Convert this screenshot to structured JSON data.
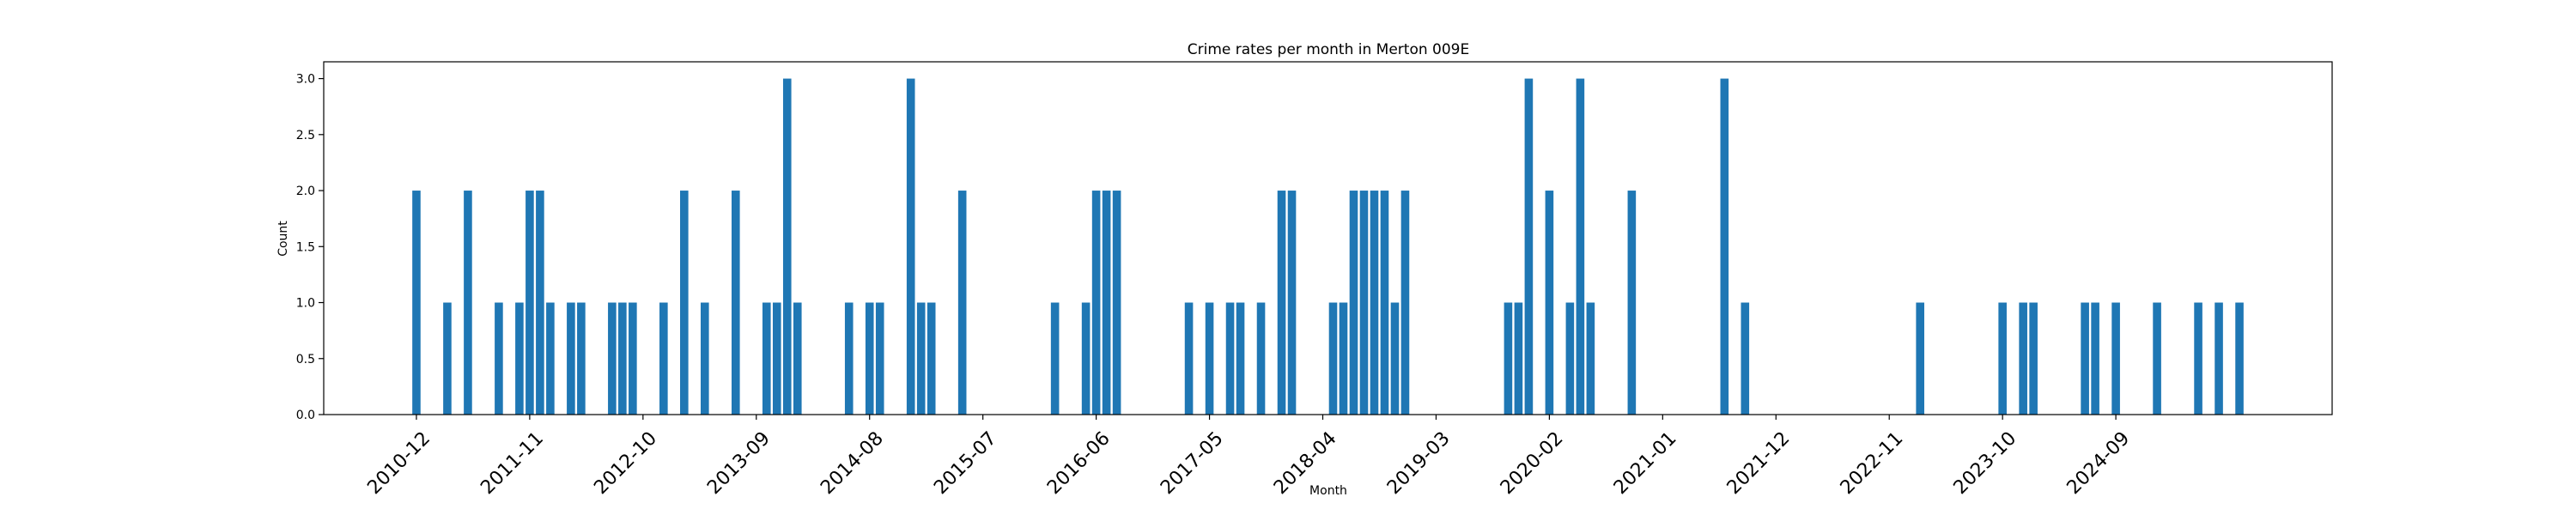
{
  "chart_data": {
    "type": "bar",
    "title": "Crime rates per month in Merton 009E",
    "xlabel": "Month",
    "ylabel": "Count",
    "ylim": [
      0,
      3.15
    ],
    "xlim": [
      "2010-03",
      "2026-06"
    ],
    "grid": false,
    "bar_color": "#1f77b4",
    "y_ticks": [
      "0.0",
      "0.5",
      "1.0",
      "1.5",
      "2.0",
      "2.5",
      "3.0"
    ],
    "x_ticks": [
      "2010-12",
      "2011-11",
      "2012-10",
      "2013-09",
      "2014-08",
      "2015-07",
      "2016-06",
      "2017-05",
      "2018-04",
      "2019-03",
      "2020-02",
      "2021-01",
      "2021-12",
      "2022-11",
      "2023-10",
      "2024-09"
    ],
    "months": [
      "2010-12",
      "2011-03",
      "2011-05",
      "2011-08",
      "2011-10",
      "2011-11",
      "2011-12",
      "2012-01",
      "2012-03",
      "2012-04",
      "2012-07",
      "2012-08",
      "2012-09",
      "2012-12",
      "2013-02",
      "2013-04",
      "2013-07",
      "2013-10",
      "2013-11",
      "2013-12",
      "2014-01",
      "2014-06",
      "2014-08",
      "2014-09",
      "2014-12",
      "2015-01",
      "2015-02",
      "2015-05",
      "2016-02",
      "2016-05",
      "2016-06",
      "2016-07",
      "2016-08",
      "2017-03",
      "2017-05",
      "2017-07",
      "2017-08",
      "2017-10",
      "2017-12",
      "2018-01",
      "2018-05",
      "2018-06",
      "2018-07",
      "2018-08",
      "2018-09",
      "2018-10",
      "2018-11",
      "2018-12",
      "2019-10",
      "2019-11",
      "2019-12",
      "2020-02",
      "2020-04",
      "2020-05",
      "2020-06",
      "2020-10",
      "2021-07",
      "2021-09",
      "2023-02",
      "2023-10",
      "2023-12",
      "2024-01",
      "2024-06",
      "2024-07",
      "2024-09",
      "2025-01",
      "2025-05",
      "2025-07",
      "2025-09"
    ],
    "values": [
      2,
      1,
      2,
      1,
      1,
      2,
      2,
      1,
      1,
      1,
      1,
      1,
      1,
      1,
      2,
      1,
      2,
      1,
      1,
      3,
      1,
      1,
      1,
      1,
      3,
      1,
      1,
      2,
      1,
      1,
      2,
      2,
      2,
      1,
      1,
      1,
      1,
      1,
      2,
      2,
      1,
      1,
      2,
      2,
      2,
      2,
      1,
      2,
      1,
      1,
      3,
      2,
      1,
      3,
      1,
      2,
      3,
      1,
      1,
      1,
      1,
      1,
      1,
      1,
      1,
      1,
      1,
      1,
      1
    ]
  }
}
